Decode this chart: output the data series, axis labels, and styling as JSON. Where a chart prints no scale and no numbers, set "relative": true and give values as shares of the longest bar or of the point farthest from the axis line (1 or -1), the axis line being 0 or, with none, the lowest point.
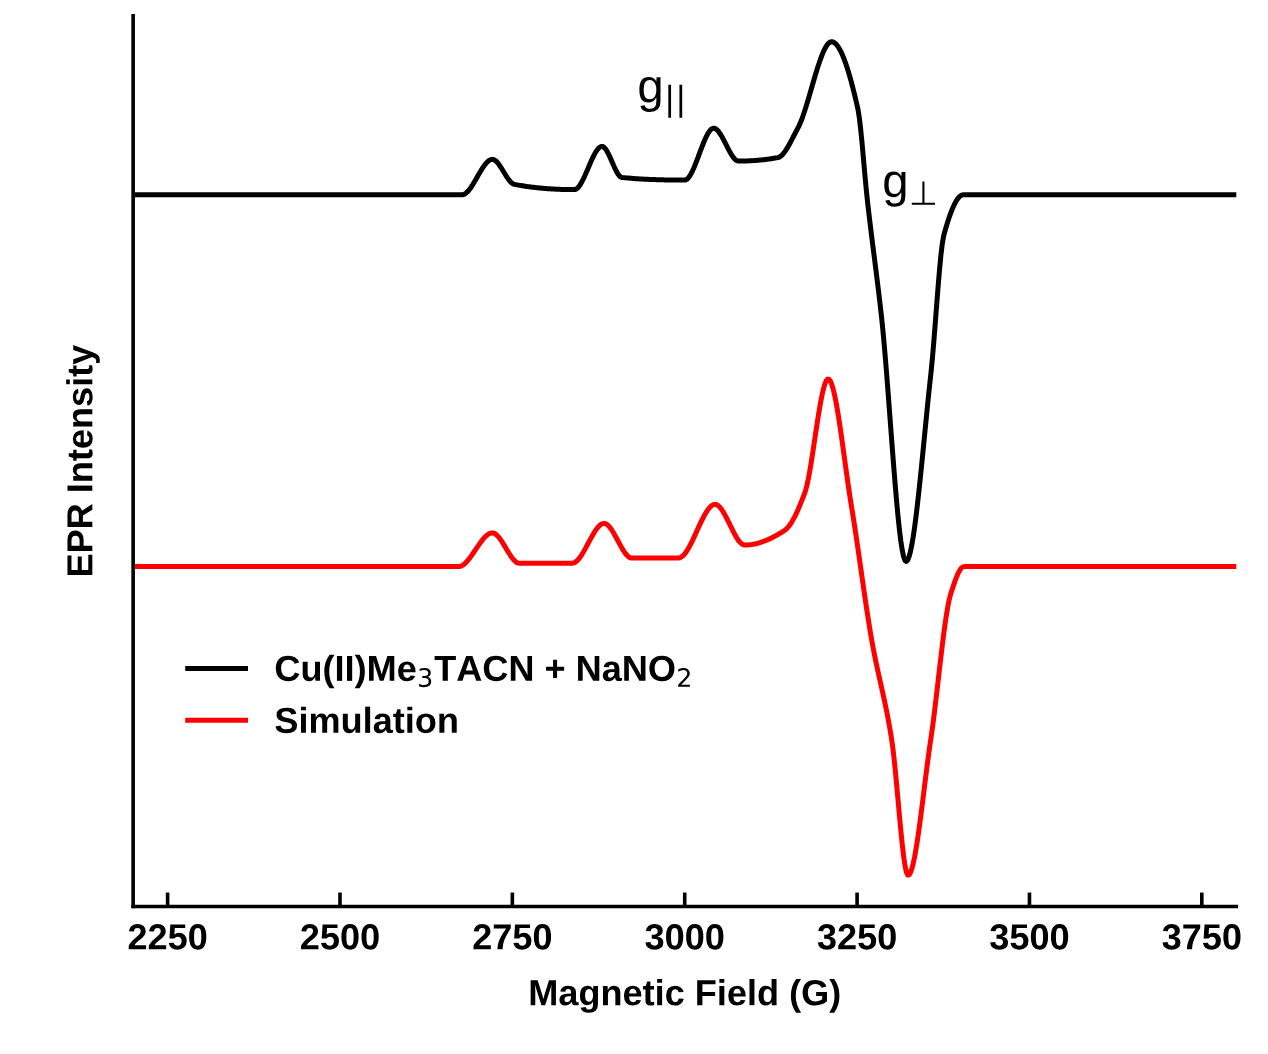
{
  "chart_data": {
    "type": "line",
    "relative": true,
    "xlabel": "Magnetic Field (G)",
    "ylabel": "EPR Intensity",
    "xlim": [
      2200,
      3800
    ],
    "xticks": [
      2250,
      2500,
      2750,
      3000,
      3250,
      3500,
      3750
    ],
    "tick_labels": "x",
    "grid": false,
    "legend": "bottom left",
    "marker": "none",
    "line_style": "solid",
    "annotations": [
      "g$_{||}$",
      "g$_{⊥}$"
    ],
    "series": [
      {
        "name": "Cu(II)Me$_{3}$TACN + NaNO$_{2}$",
        "color": "#000000",
        "x": [
          2200,
          2677,
          2721,
          2753,
          2840,
          2880,
          2909,
          3000,
          3042,
          3078,
          3135,
          3164,
          3213,
          3251,
          3265,
          3285,
          3321,
          3357,
          3376,
          3404,
          3800
        ],
        "values": [
          0.823,
          0.823,
          0.864,
          0.835,
          0.829,
          0.879,
          0.843,
          0.84,
          0.9,
          0.862,
          0.866,
          0.9,
          1.0,
          0.923,
          0.816,
          0.685,
          0.399,
          0.616,
          0.777,
          0.823,
          0.823
        ]
      },
      {
        "name": "Simulation",
        "color": "#ff0000",
        "x": [
          2200,
          2672,
          2721,
          2760,
          2837,
          2883,
          2923,
          2991,
          3044,
          3087,
          3145,
          3174,
          3208,
          3242,
          3271,
          3300,
          3324,
          3357,
          3386,
          3405,
          3800
        ],
        "values": [
          0.393,
          0.393,
          0.432,
          0.397,
          0.397,
          0.443,
          0.403,
          0.403,
          0.465,
          0.418,
          0.435,
          0.478,
          0.61,
          0.462,
          0.309,
          0.194,
          0.036,
          0.194,
          0.362,
          0.393,
          0.393
        ]
      }
    ]
  }
}
